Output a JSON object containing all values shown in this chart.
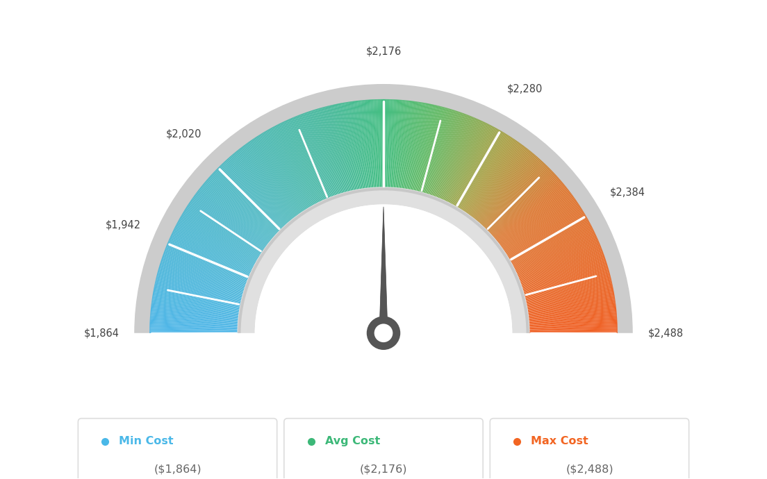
{
  "min_val": 1864,
  "max_val": 2488,
  "avg_val": 2176,
  "needle_val": 2176,
  "tick_labels": [
    "$1,864",
    "$1,942",
    "$2,020",
    "$2,176",
    "$2,280",
    "$2,384",
    "$2,488"
  ],
  "tick_values": [
    1864,
    1942,
    2020,
    2176,
    2280,
    2384,
    2488
  ],
  "legend_labels": [
    "Min Cost",
    "Avg Cost",
    "Max Cost"
  ],
  "legend_values": [
    "($1,864)",
    "($2,176)",
    "($2,488)"
  ],
  "legend_colors": [
    "#4ab8e8",
    "#3cb878",
    "#f26522"
  ],
  "bg_color": "#ffffff",
  "gradient_colors": [
    [
      0.0,
      [
        78,
        182,
        232
      ]
    ],
    [
      0.25,
      [
        80,
        185,
        195
      ]
    ],
    [
      0.42,
      [
        72,
        185,
        155
      ]
    ],
    [
      0.5,
      [
        68,
        190,
        130
      ]
    ],
    [
      0.58,
      [
        100,
        185,
        100
      ]
    ],
    [
      0.68,
      [
        170,
        160,
        70
      ]
    ],
    [
      0.78,
      [
        220,
        120,
        50
      ]
    ],
    [
      1.0,
      [
        240,
        95,
        35
      ]
    ]
  ]
}
